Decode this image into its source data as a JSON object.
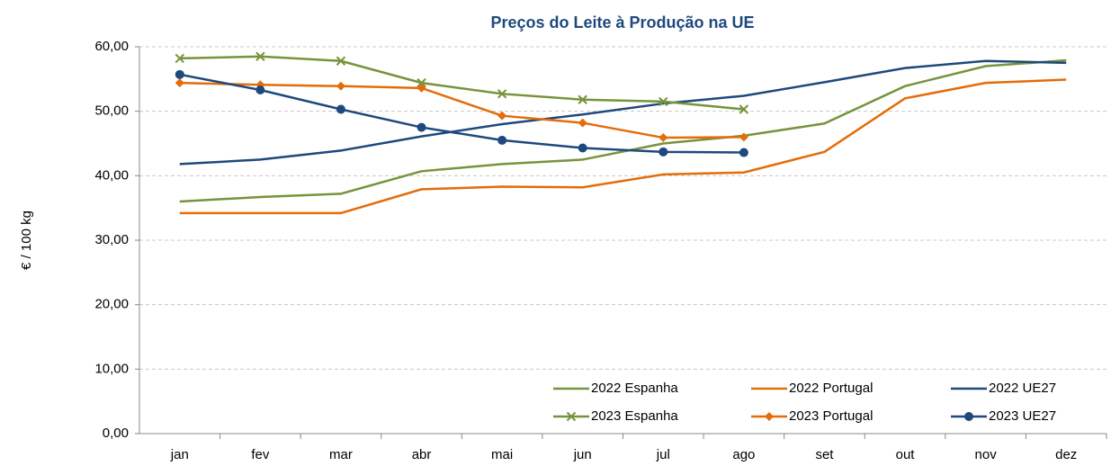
{
  "chart_data": {
    "type": "line",
    "title": "Preços do Leite à Produção na UE",
    "y_label": "€ / 100 kg",
    "categories": [
      "jan",
      "fev",
      "mar",
      "abr",
      "mai",
      "jun",
      "jul",
      "ago",
      "set",
      "out",
      "nov",
      "dez"
    ],
    "ylim": [
      0,
      60
    ],
    "yticks": [
      {
        "value": 0,
        "label": "0,00"
      },
      {
        "value": 10,
        "label": "10,00"
      },
      {
        "value": 20,
        "label": "20,00"
      },
      {
        "value": 30,
        "label": "30,00"
      },
      {
        "value": 40,
        "label": "40,00"
      },
      {
        "value": 50,
        "label": "50,00"
      },
      {
        "value": 60,
        "label": "60,00"
      }
    ],
    "grid": true,
    "legend": "lower right",
    "series": [
      {
        "name": "2022 Espanha",
        "color": "#77933c",
        "marker": "none",
        "values": [
          36.0,
          36.7,
          37.2,
          40.7,
          41.8,
          42.5,
          45.0,
          46.2,
          48.1,
          53.9,
          57.0,
          57.9
        ]
      },
      {
        "name": "2022 Portugal",
        "color": "#e46c0a",
        "marker": "none",
        "values": [
          34.2,
          34.2,
          34.2,
          37.9,
          38.3,
          38.2,
          40.2,
          40.5,
          43.7,
          52.0,
          54.4,
          54.9
        ]
      },
      {
        "name": "2022 UE27",
        "color": "#1f497d",
        "marker": "none",
        "values": [
          41.8,
          42.5,
          43.9,
          46.1,
          48.0,
          49.5,
          51.2,
          52.4,
          54.5,
          56.7,
          57.8,
          57.5
        ]
      },
      {
        "name": "2023 Espanha",
        "color": "#77933c",
        "marker": "x",
        "values": [
          58.2,
          58.5,
          57.8,
          54.4,
          52.7,
          51.8,
          51.5,
          50.3,
          null,
          null,
          null,
          null
        ]
      },
      {
        "name": "2023 Portugal",
        "color": "#e46c0a",
        "marker": "diamond",
        "values": [
          54.4,
          54.1,
          53.9,
          53.6,
          49.3,
          48.2,
          45.9,
          46.0,
          null,
          null,
          null,
          null
        ]
      },
      {
        "name": "2023 UE27",
        "color": "#1f497d",
        "marker": "circle",
        "values": [
          55.7,
          53.3,
          50.3,
          47.5,
          45.5,
          44.3,
          43.7,
          43.6,
          null,
          null,
          null,
          null
        ]
      }
    ]
  }
}
